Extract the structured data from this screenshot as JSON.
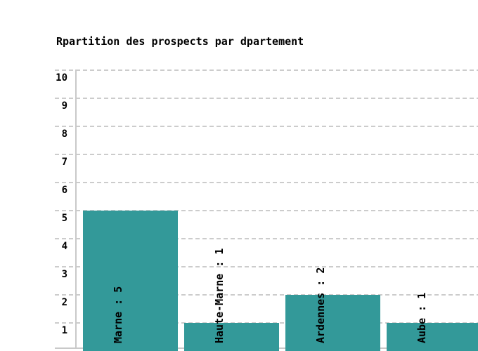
{
  "chart_data": {
    "type": "bar",
    "title": "Rpartition des prospects par dpartement",
    "categories": [
      "Marne",
      "Haute-Marne",
      "Ardennes",
      "Aube"
    ],
    "values": [
      5,
      1,
      2,
      1
    ],
    "bar_labels": [
      "Marne : 5",
      "Haute-Marne : 1",
      "Ardennes : 2",
      "Aube : 1"
    ],
    "xlabel": "",
    "ylabel": "",
    "ylim": [
      0,
      10
    ],
    "yticks": [
      1,
      2,
      3,
      4,
      5,
      6,
      7,
      8,
      9,
      10
    ],
    "grid": true,
    "gridline_style": "dashed",
    "legend": false,
    "bar_color": "#339999",
    "text_color": "#000000",
    "grid_color": "#cccccc",
    "axis_color": "#c9c9c9",
    "background_color": "#ffffff"
  }
}
